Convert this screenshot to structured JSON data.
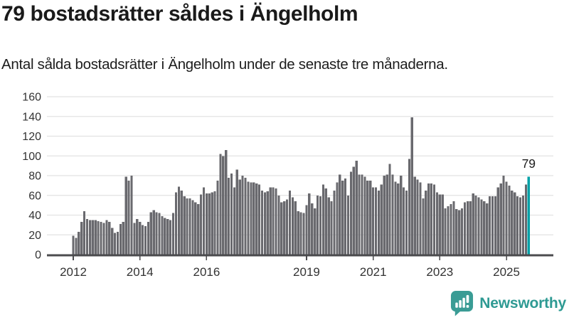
{
  "header": {
    "title": "79 bostadsrätter såldes i Ängelholm",
    "subtitle": "Antal sålda bostadsrätter i Ängelholm under de senaste tre månaderna."
  },
  "branding": {
    "logo_text": "Newsworthy",
    "logo_color": "#2E9A93",
    "icon_color": "#3A9C95",
    "icon_name": "newsworthy-bar-chart-speech-bubble-icon"
  },
  "chart_data": {
    "type": "bar",
    "title": "79 bostadsrätter såldes i Ängelholm",
    "subtitle": "Antal sålda bostadsrätter i Ängelholm under de senaste tre månaderna.",
    "frequency": "monthly",
    "x_tick_labels": [
      "2012",
      "2014",
      "2016",
      "2019",
      "2021",
      "2023",
      "2025"
    ],
    "y_ticks": [
      0,
      20,
      40,
      60,
      80,
      100,
      120,
      140,
      160
    ],
    "ylim": [
      0,
      160
    ],
    "grid": true,
    "legend": "none",
    "annotation": {
      "label": "79",
      "target": "last-bar"
    },
    "highlight_last": true,
    "colors": {
      "bar": "#69696E",
      "highlight": "#00A1A7",
      "gridline": "#E2E2E2",
      "axis": "#4B4B4E",
      "tick_text": "#333333",
      "annotation_text": "#1D1D1D"
    },
    "values": [
      19,
      17,
      23,
      33,
      44,
      36,
      35,
      35,
      35,
      34,
      33,
      32,
      35,
      33,
      27,
      22,
      23,
      31,
      33,
      79,
      75,
      80,
      32,
      36,
      33,
      30,
      29,
      33,
      43,
      45,
      43,
      42,
      39,
      37,
      36,
      35,
      42,
      63,
      69,
      65,
      59,
      57,
      57,
      55,
      53,
      51,
      61,
      68,
      62,
      62,
      63,
      64,
      75,
      102,
      100,
      106,
      78,
      82,
      68,
      86,
      76,
      80,
      78,
      74,
      73,
      73,
      72,
      71,
      65,
      63,
      64,
      68,
      68,
      67,
      60,
      53,
      54,
      56,
      65,
      58,
      54,
      44,
      43,
      42,
      50,
      62,
      52,
      47,
      60,
      59,
      71,
      67,
      58,
      54,
      65,
      73,
      81,
      75,
      77,
      60,
      84,
      89,
      95,
      81,
      81,
      79,
      75,
      75,
      68,
      68,
      65,
      71,
      80,
      81,
      92,
      81,
      74,
      72,
      80,
      68,
      65,
      97,
      139,
      79,
      76,
      73,
      57,
      65,
      72,
      72,
      71,
      63,
      61,
      61,
      47,
      49,
      51,
      54,
      46,
      45,
      47,
      53,
      54,
      54,
      62,
      60,
      58,
      56,
      54,
      52,
      59,
      59,
      59,
      68,
      72,
      80,
      74,
      70,
      65,
      63,
      59,
      58,
      60,
      71,
      79
    ]
  }
}
